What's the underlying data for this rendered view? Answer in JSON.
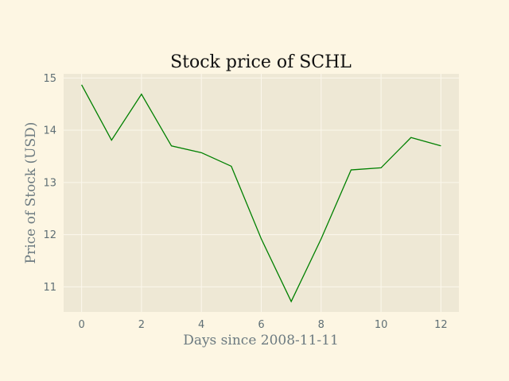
{
  "chart_data": {
    "type": "line",
    "title": "Stock price of SCHL",
    "xlabel": "Days since 2008-11-11",
    "ylabel": "Price of Stock (USD)",
    "x": [
      0,
      1,
      2,
      3,
      4,
      5,
      6,
      7,
      8,
      9,
      10,
      11,
      12
    ],
    "series": [
      {
        "values": [
          14.87,
          13.81,
          14.69,
          13.7,
          13.57,
          13.31,
          11.92,
          10.72,
          11.92,
          13.24,
          13.28,
          13.86,
          13.7
        ],
        "color": "#008000"
      }
    ],
    "xlim": [
      -0.6,
      12.6
    ],
    "ylim": [
      10.52,
      15.08
    ],
    "xticks": [
      0,
      2,
      4,
      6,
      8,
      10,
      12
    ],
    "yticks": [
      11,
      12,
      13,
      14,
      15
    ],
    "grid": true,
    "colors": {
      "figure_background": "#fdf6e3",
      "plot_background": "#eee8d5",
      "grid": "#fbf7ec"
    }
  }
}
